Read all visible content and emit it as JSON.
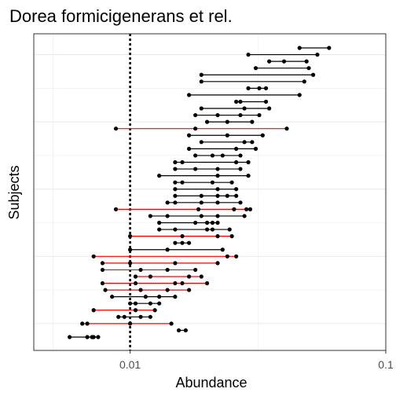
{
  "chart_data": {
    "type": "dot-range",
    "title": "Dorea formicigenerans et rel.",
    "xlabel": "Abundance",
    "ylabel": "Subjects",
    "x_scale": "log10",
    "xlim": [
      0.0042,
      0.1
    ],
    "x_ticks": [
      0.01,
      0.1
    ],
    "x_tick_labels": [
      "0.01",
      "0.1"
    ],
    "reference_line": {
      "x": 0.01,
      "style": "dotted"
    },
    "grid": true,
    "colors": {
      "normal": "#000000",
      "highlight": "#ff0000",
      "panel_border": "#333333",
      "grid": "#ebebeb"
    },
    "subjects": [
      {
        "values": [
          0.06,
          0.046
        ]
      },
      {
        "values": [
          0.054,
          0.029
        ]
      },
      {
        "values": [
          0.049,
          0.04,
          0.035
        ]
      },
      {
        "values": [
          0.05,
          0.031
        ]
      },
      {
        "values": [
          0.052,
          0.019
        ]
      },
      {
        "values": [
          0.048,
          0.019
        ]
      },
      {
        "values": [
          0.034,
          0.032,
          0.029
        ]
      },
      {
        "values": [
          0.046,
          0.017
        ]
      },
      {
        "values": [
          0.034,
          0.027,
          0.026
        ]
      },
      {
        "values": [
          0.035,
          0.028,
          0.019
        ]
      },
      {
        "values": [
          0.032,
          0.027,
          0.022,
          0.018
        ]
      },
      {
        "values": [
          0.03,
          0.024,
          0.02
        ]
      },
      {
        "values": [
          0.041,
          0.0088,
          0.018
        ],
        "highlight": true
      },
      {
        "values": [
          0.033,
          0.024,
          0.017
        ]
      },
      {
        "values": [
          0.03,
          0.028,
          0.019
        ]
      },
      {
        "values": [
          0.031,
          0.026,
          0.017
        ]
      },
      {
        "values": [
          0.027,
          0.023,
          0.021,
          0.018
        ]
      },
      {
        "values": [
          0.029,
          0.026,
          0.016,
          0.015
        ]
      },
      {
        "values": [
          0.027,
          0.022,
          0.018,
          0.015
        ]
      },
      {
        "values": [
          0.029,
          0.022,
          0.013
        ]
      },
      {
        "values": [
          0.025,
          0.021,
          0.016,
          0.015
        ]
      },
      {
        "values": [
          0.026,
          0.022,
          0.015
        ]
      },
      {
        "values": [
          0.026,
          0.024,
          0.022,
          0.019,
          0.015
        ]
      },
      {
        "values": [
          0.027,
          0.022,
          0.019,
          0.015,
          0.014
        ]
      },
      {
        "values": [
          0.0295,
          0.0285,
          0.0255,
          0.0185,
          0.0088
        ],
        "highlight": true
      },
      {
        "values": [
          0.028,
          0.022,
          0.019,
          0.014,
          0.012
        ]
      },
      {
        "values": [
          0.022,
          0.021,
          0.02,
          0.018,
          0.013
        ]
      },
      {
        "values": [
          0.0245,
          0.021,
          0.02,
          0.015,
          0.013
        ]
      },
      {
        "values": [
          0.025,
          0.022,
          0.016,
          0.01
        ],
        "highlight": true
      },
      {
        "values": [
          0.017,
          0.016,
          0.015
        ]
      },
      {
        "values": [
          0.023,
          0.014,
          0.01
        ]
      },
      {
        "values": [
          0.026,
          0.024,
          0.0072
        ],
        "highlight": true
      },
      {
        "values": [
          0.022,
          0.015,
          0.01,
          0.0078
        ],
        "highlight": true
      },
      {
        "values": [
          0.018,
          0.014,
          0.011,
          0.0078
        ],
        "highlight": true
      },
      {
        "values": [
          0.019,
          0.017,
          0.012,
          0.0105
        ],
        "highlight": true
      },
      {
        "values": [
          0.02,
          0.016,
          0.015,
          0.0105,
          0.0078
        ],
        "highlight": true
      },
      {
        "values": [
          0.017,
          0.014,
          0.011,
          0.008
        ],
        "highlight": true
      },
      {
        "values": [
          0.015,
          0.013,
          0.0115,
          0.0085
        ]
      },
      {
        "values": [
          0.013,
          0.012,
          0.0105,
          0.01
        ]
      },
      {
        "values": [
          0.0125,
          0.0105,
          0.0072
        ],
        "highlight": true
      },
      {
        "values": [
          0.012,
          0.011,
          0.0095,
          0.009
        ]
      },
      {
        "values": [
          0.0145,
          0.01,
          0.0068,
          0.0065
        ],
        "highlight": true
      },
      {
        "values": [
          0.0165,
          0.0155
        ]
      },
      {
        "values": [
          0.0075,
          0.0072,
          0.0071,
          0.0068,
          0.0058
        ]
      }
    ]
  }
}
